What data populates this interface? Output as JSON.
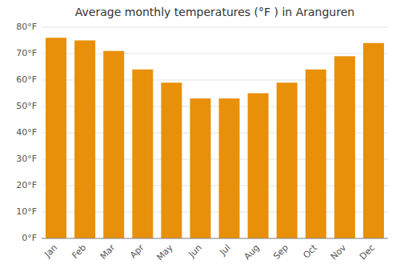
{
  "chart_data": {
    "type": "bar",
    "title": "Average monthly temperatures (°F ) in Aranguren",
    "categories": [
      "Jan",
      "Feb",
      "Mar",
      "Apr",
      "May",
      "Jun",
      "Jul",
      "Aug",
      "Sep",
      "Oct",
      "Nov",
      "Dec"
    ],
    "values": [
      76,
      75,
      71,
      64,
      59,
      53,
      53,
      55,
      59,
      64,
      69,
      74
    ],
    "color": "#E8900A",
    "ylim": [
      0,
      80
    ],
    "yticks": [
      {
        "value": 0,
        "label": "0°F"
      },
      {
        "value": 10,
        "label": "10°F"
      },
      {
        "value": 20,
        "label": "20°F"
      },
      {
        "value": 30,
        "label": "30°F"
      },
      {
        "value": 40,
        "label": "40°F"
      },
      {
        "value": 50,
        "label": "50°F"
      },
      {
        "value": 60,
        "label": "60°F"
      },
      {
        "value": 70,
        "label": "70°F"
      },
      {
        "value": 80,
        "label": "80°F"
      }
    ],
    "grid": true
  }
}
